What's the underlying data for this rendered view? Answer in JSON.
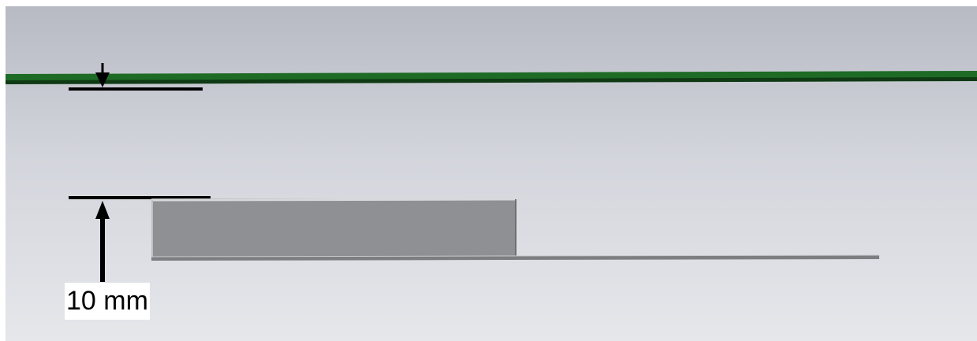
{
  "dimension": {
    "label": "10 mm"
  },
  "colors": {
    "background_top": "#b7bac3",
    "background_bottom": "#e6e7eb",
    "green_layer": "#1e6b26",
    "metal_block": "#8f9093",
    "dimension_lines": "#000000"
  }
}
